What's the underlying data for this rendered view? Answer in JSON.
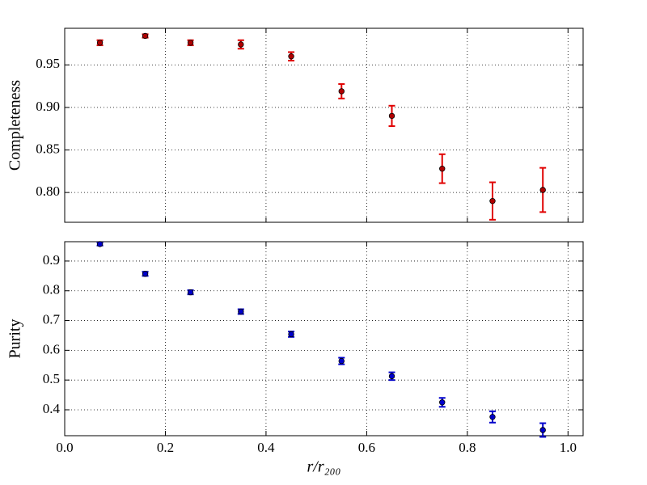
{
  "chart_data": [
    {
      "type": "errorbar",
      "ylabel": "Completeness",
      "grid": true,
      "xlim": [
        0,
        1.03
      ],
      "ylim": [
        0.765,
        0.993
      ],
      "xticks": [
        {
          "value": 0,
          "label": "0.0"
        },
        0.2,
        0.4,
        0.6,
        0.8,
        {
          "value": 1,
          "label": "1.0"
        }
      ],
      "yticks": [
        {
          "value": 0.8,
          "label": "0.80"
        },
        0.85,
        {
          "value": 0.9,
          "label": "0.90"
        },
        0.95
      ],
      "x": [
        0.07,
        0.16,
        0.25,
        0.35,
        0.45,
        0.55,
        0.65,
        0.75,
        0.85,
        0.95
      ],
      "series": [
        {
          "color": "#e00000",
          "marker_color": "#b00000",
          "values": [
            0.976,
            0.984,
            0.976,
            0.974,
            0.96,
            0.919,
            0.89,
            0.828,
            0.79,
            0.803
          ],
          "errors": [
            0.003,
            0.002,
            0.003,
            0.005,
            0.005,
            0.0085,
            0.012,
            0.017,
            0.022,
            0.026
          ]
        }
      ]
    },
    {
      "type": "errorbar",
      "ylabel": "Purity",
      "xlabel": "r/r₂₀₀",
      "grid": true,
      "xlim": [
        0,
        1.03
      ],
      "ylim": [
        0.313,
        0.965
      ],
      "xticks": [
        {
          "value": 0,
          "label": "0.0"
        },
        0.2,
        0.4,
        0.6,
        0.8,
        {
          "value": 1,
          "label": "1.0"
        }
      ],
      "yticks": [
        0.4,
        0.5,
        0.6,
        0.7,
        0.8,
        0.9
      ],
      "x": [
        0.07,
        0.16,
        0.25,
        0.35,
        0.45,
        0.55,
        0.65,
        0.75,
        0.85,
        0.95
      ],
      "series": [
        {
          "color": "#0000cc",
          "marker_color": "#0000cc",
          "values": [
            0.957,
            0.857,
            0.795,
            0.73,
            0.654,
            0.564,
            0.513,
            0.425,
            0.376,
            0.332
          ],
          "errors": [
            0.005,
            0.007,
            0.007,
            0.008,
            0.009,
            0.011,
            0.013,
            0.015,
            0.019,
            0.023
          ]
        }
      ]
    }
  ]
}
